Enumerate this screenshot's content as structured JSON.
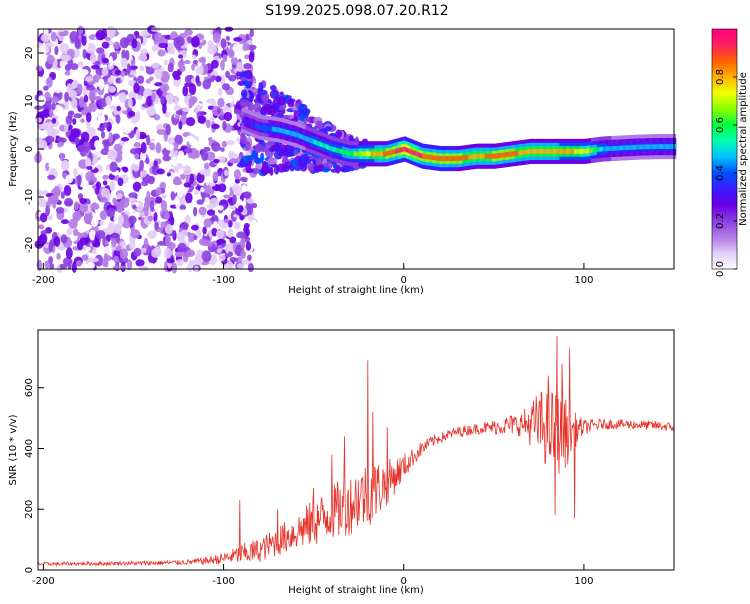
{
  "title": "S199.2025.098.07.20.R12",
  "colors": {
    "line": "#e8332b",
    "spectrum_scale": [
      "#ffffff",
      "#e2ccf6",
      "#b27ae6",
      "#8a3ee0",
      "#6a00e6",
      "#3a1cff",
      "#0050ff",
      "#00c0ff",
      "#00ffb0",
      "#00ff40",
      "#8cff00",
      "#f0ff00",
      "#ffb000",
      "#ff6000",
      "#ff2060",
      "#ff0080"
    ]
  },
  "chart_data": [
    {
      "type": "heatmap",
      "xlabel": "Height of straight line (km)",
      "ylabel": "Frequency (Hz)",
      "xlim": [
        -203,
        150
      ],
      "ylim": [
        -25,
        25
      ],
      "xticks": [
        -200,
        -100,
        0,
        100
      ],
      "yticks": [
        -20,
        -10,
        0,
        10,
        20
      ],
      "colorbar": {
        "label": "Normalized spectral amplitude",
        "range": [
          0,
          1
        ],
        "ticks": [
          "0.0",
          "0.2",
          "0.4",
          "0.6",
          "0.8"
        ]
      },
      "ridge": {
        "x": [
          -90,
          -80,
          -70,
          -60,
          -50,
          -40,
          -30,
          -20,
          -10,
          0,
          10,
          20,
          30,
          40,
          50,
          60,
          70,
          80,
          90,
          100,
          110,
          120,
          130,
          140,
          150
        ],
        "y": [
          6,
          4.5,
          4,
          3,
          1.5,
          0,
          -1,
          -1,
          -1,
          0,
          -1.5,
          -2,
          -2,
          -1.5,
          -1.5,
          -1,
          -0.5,
          -0.5,
          -0.5,
          -0.5,
          0,
          0.2,
          0.4,
          0.5,
          0.5
        ],
        "amplitude": [
          0.3,
          0.4,
          0.45,
          0.45,
          0.5,
          0.55,
          0.6,
          0.75,
          0.85,
          0.95,
          0.9,
          0.88,
          0.85,
          0.82,
          0.85,
          0.85,
          0.8,
          0.8,
          0.78,
          0.75,
          0.5,
          0.45,
          0.45,
          0.45,
          0.45
        ]
      }
    },
    {
      "type": "line",
      "xlabel": "Height of straight line (km)",
      "ylabel": "SNR (10 * v/v)",
      "xlim": [
        -203,
        150
      ],
      "ylim": [
        0,
        790
      ],
      "xticks": [
        -200,
        -100,
        0,
        100
      ],
      "yticks": [
        0,
        200,
        400,
        600
      ],
      "series": [
        {
          "x": [
            -203,
            -190,
            -180,
            -170,
            -160,
            -150,
            -140,
            -130,
            -120,
            -110,
            -100,
            -95,
            -90,
            -85,
            -80,
            -75,
            -70,
            -65,
            -60,
            -55,
            -50,
            -45,
            -40,
            -35,
            -30,
            -25,
            -20,
            -15,
            -10,
            -5,
            0,
            5,
            10,
            15,
            20,
            25,
            30,
            35,
            40,
            45,
            50,
            55,
            60,
            65,
            70,
            75,
            80,
            85,
            90,
            95,
            100,
            110,
            120,
            130,
            140,
            150
          ],
          "y": [
            20,
            20,
            21,
            21,
            22,
            22,
            23,
            24,
            26,
            30,
            38,
            45,
            52,
            58,
            65,
            80,
            95,
            110,
            125,
            140,
            155,
            170,
            190,
            200,
            215,
            240,
            250,
            265,
            285,
            310,
            340,
            370,
            400,
            420,
            435,
            445,
            455,
            460,
            465,
            468,
            470,
            475,
            478,
            480,
            480,
            480,
            470,
            450,
            450,
            460,
            470,
            480,
            480,
            478,
            475,
            470
          ],
          "noise": [
            6,
            6,
            6,
            6,
            6,
            7,
            7,
            8,
            9,
            12,
            20,
            25,
            35,
            40,
            40,
            45,
            50,
            55,
            60,
            70,
            80,
            85,
            90,
            100,
            100,
            110,
            110,
            100,
            80,
            60,
            45,
            30,
            25,
            20,
            18,
            18,
            18,
            18,
            18,
            20,
            25,
            30,
            35,
            40,
            70,
            110,
            140,
            140,
            120,
            60,
            25,
            18,
            16,
            16,
            16,
            16
          ]
        }
      ],
      "spikes": [
        {
          "x": -91,
          "y": 230
        },
        {
          "x": -70,
          "y": 200
        },
        {
          "x": -50,
          "y": 270
        },
        {
          "x": -40,
          "y": 380
        },
        {
          "x": -33,
          "y": 440
        },
        {
          "x": -20,
          "y": 690
        },
        {
          "x": -17,
          "y": 520
        },
        {
          "x": -9,
          "y": 470
        },
        {
          "x": 80,
          "y": 640
        },
        {
          "x": 85,
          "y": 770
        },
        {
          "x": 88,
          "y": 680
        },
        {
          "x": 92,
          "y": 730
        },
        {
          "x": 95,
          "y": 170
        },
        {
          "x": 84,
          "y": 180
        }
      ]
    }
  ]
}
